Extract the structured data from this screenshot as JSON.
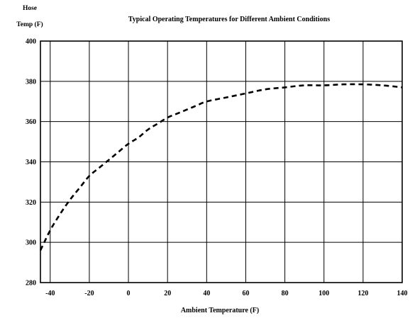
{
  "chart_data": {
    "type": "line",
    "title": "Typical Operating Temperatures for Different Ambient Conditions",
    "ylabel_line1": "Hose",
    "ylabel_line2": "Temp (F)",
    "xlabel": "Ambient Temperature (F)",
    "xlim": [
      -45,
      140
    ],
    "ylim": [
      280,
      400
    ],
    "x_ticks": [
      -40,
      -20,
      0,
      20,
      40,
      60,
      80,
      100,
      120,
      140
    ],
    "y_ticks": [
      280,
      300,
      320,
      340,
      360,
      380,
      400
    ],
    "grid": true,
    "line_style": "dashed",
    "series": [
      {
        "x": [
          -45,
          -40,
          -35,
          -30,
          -25,
          -20,
          -15,
          -10,
          -5,
          0,
          5,
          10,
          15,
          20,
          25,
          30,
          35,
          40,
          50,
          60,
          70,
          80,
          90,
          100,
          110,
          120,
          130,
          140
        ],
        "y": [
          296,
          306,
          314,
          321,
          327,
          333,
          337,
          341,
          345,
          349,
          352,
          356,
          359,
          362,
          364,
          366,
          368,
          370,
          372,
          374,
          376,
          377,
          378,
          378,
          378.5,
          378.5,
          378,
          377
        ]
      }
    ]
  }
}
